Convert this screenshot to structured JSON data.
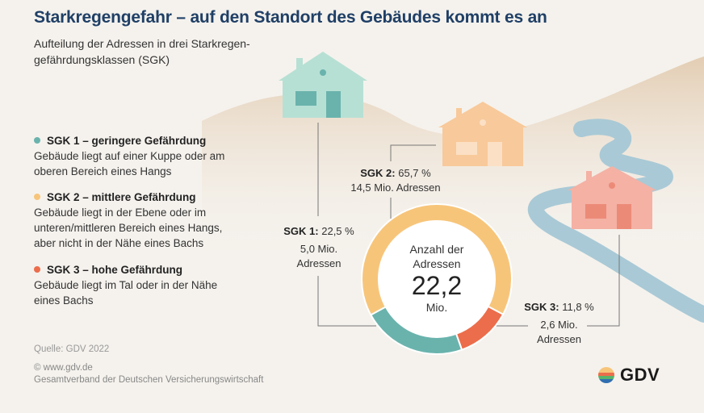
{
  "title": "Starkregengefahr – auf den Standort des Gebäudes kommt es an",
  "subtitle": "Aufteilung der Adressen in drei Starkregen-gefährdungsklassen (SGK)",
  "legend": [
    {
      "title": "SGK 1 – geringere Gefährdung",
      "text": "Gebäude liegt auf einer Kuppe oder am oberen Bereich eines Hangs",
      "color": "#6ab3ad"
    },
    {
      "title": "SGK 2 – mittlere Gefährdung",
      "text": "Gebäude liegt in der Ebene oder im unteren/mittleren Bereich eines Hangs, aber nicht in der Nähe eines Bachs",
      "color": "#f7c57a"
    },
    {
      "title": "SGK 3 – hohe Gefährdung",
      "text": "Gebäude liegt im Tal oder in der Nähe eines Bachs",
      "color": "#ec6d4b"
    }
  ],
  "source": "Quelle: GDV 2022",
  "copyright": "© www.gdv.de",
  "org": "Gesamtverband der Deutschen Versicherungswirtschaft",
  "logo_text": "GDV",
  "chart_data": {
    "type": "pie",
    "variant": "donut",
    "center_label": "Anzahl der Adressen",
    "center_value": "22,2",
    "center_unit": "Mio.",
    "slices": [
      {
        "name": "SGK 1:",
        "percent_label": "22,5 %",
        "value": 22.5,
        "count_label": "5,0 Mio. Adressen",
        "color": "#6ab3ad"
      },
      {
        "name": "SGK 2:",
        "percent_label": "65,7 %",
        "value": 65.7,
        "count_label": "14,5 Mio. Adressen",
        "color": "#f7c57a"
      },
      {
        "name": "SGK 3:",
        "percent_label": "11,8 %",
        "value": 11.8,
        "count_label": "2,6 Mio. Adressen",
        "color": "#ec6d4b"
      }
    ]
  }
}
